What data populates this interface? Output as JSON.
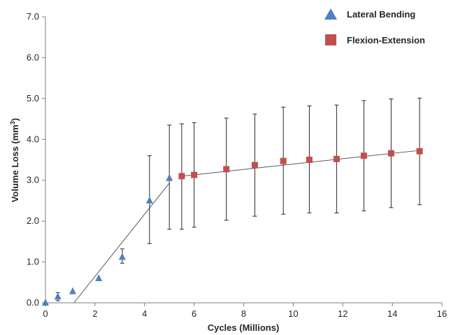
{
  "chart_data": {
    "type": "scatter",
    "xlabel": "Cycles (Millions)",
    "ylabel": "Volume Loss (mm",
    "ylabel_sup": "3",
    "ylabel_close": ")",
    "xlim": [
      0,
      16
    ],
    "ylim": [
      0,
      7
    ],
    "xticks": [
      "0",
      "2",
      "4",
      "6",
      "8",
      "10",
      "12",
      "14",
      "16"
    ],
    "yticks": [
      "0.0",
      "1.0",
      "2.0",
      "3.0",
      "4.0",
      "5.0",
      "6.0",
      "7.0"
    ],
    "grid": false,
    "legend_position": "top-right",
    "series": [
      {
        "name": "Lateral Bending",
        "marker": "triangle",
        "color": "#4f81bd",
        "x": [
          0,
          0.5,
          1.1,
          2.15,
          3.1,
          4.2,
          5.0
        ],
        "y": [
          0.0,
          0.15,
          0.28,
          0.6,
          1.12,
          2.5,
          3.05
        ],
        "err_low": [
          0,
          0.1,
          0,
          0,
          0.15,
          1.05,
          1.25
        ],
        "err_high": [
          0,
          0.1,
          0,
          0,
          0.2,
          1.1,
          1.3
        ],
        "trendline": {
          "x": [
            1.15,
            5.0
          ],
          "y": [
            0.0,
            2.93
          ]
        }
      },
      {
        "name": "Flexion-Extension",
        "marker": "square",
        "color": "#c0504d",
        "x": [
          5.5,
          6.0,
          7.3,
          8.45,
          9.6,
          10.65,
          11.75,
          12.85,
          13.95,
          15.1
        ],
        "y": [
          3.1,
          3.13,
          3.27,
          3.37,
          3.47,
          3.5,
          3.52,
          3.6,
          3.66,
          3.71
        ],
        "err_low": [
          1.3,
          1.28,
          1.25,
          1.25,
          1.3,
          1.3,
          1.32,
          1.35,
          1.33,
          1.31
        ],
        "err_high": [
          1.28,
          1.28,
          1.25,
          1.25,
          1.32,
          1.32,
          1.32,
          1.35,
          1.33,
          1.3
        ],
        "trendline": {
          "x": [
            5.5,
            15.1
          ],
          "y": [
            3.1,
            3.73
          ]
        }
      }
    ]
  }
}
